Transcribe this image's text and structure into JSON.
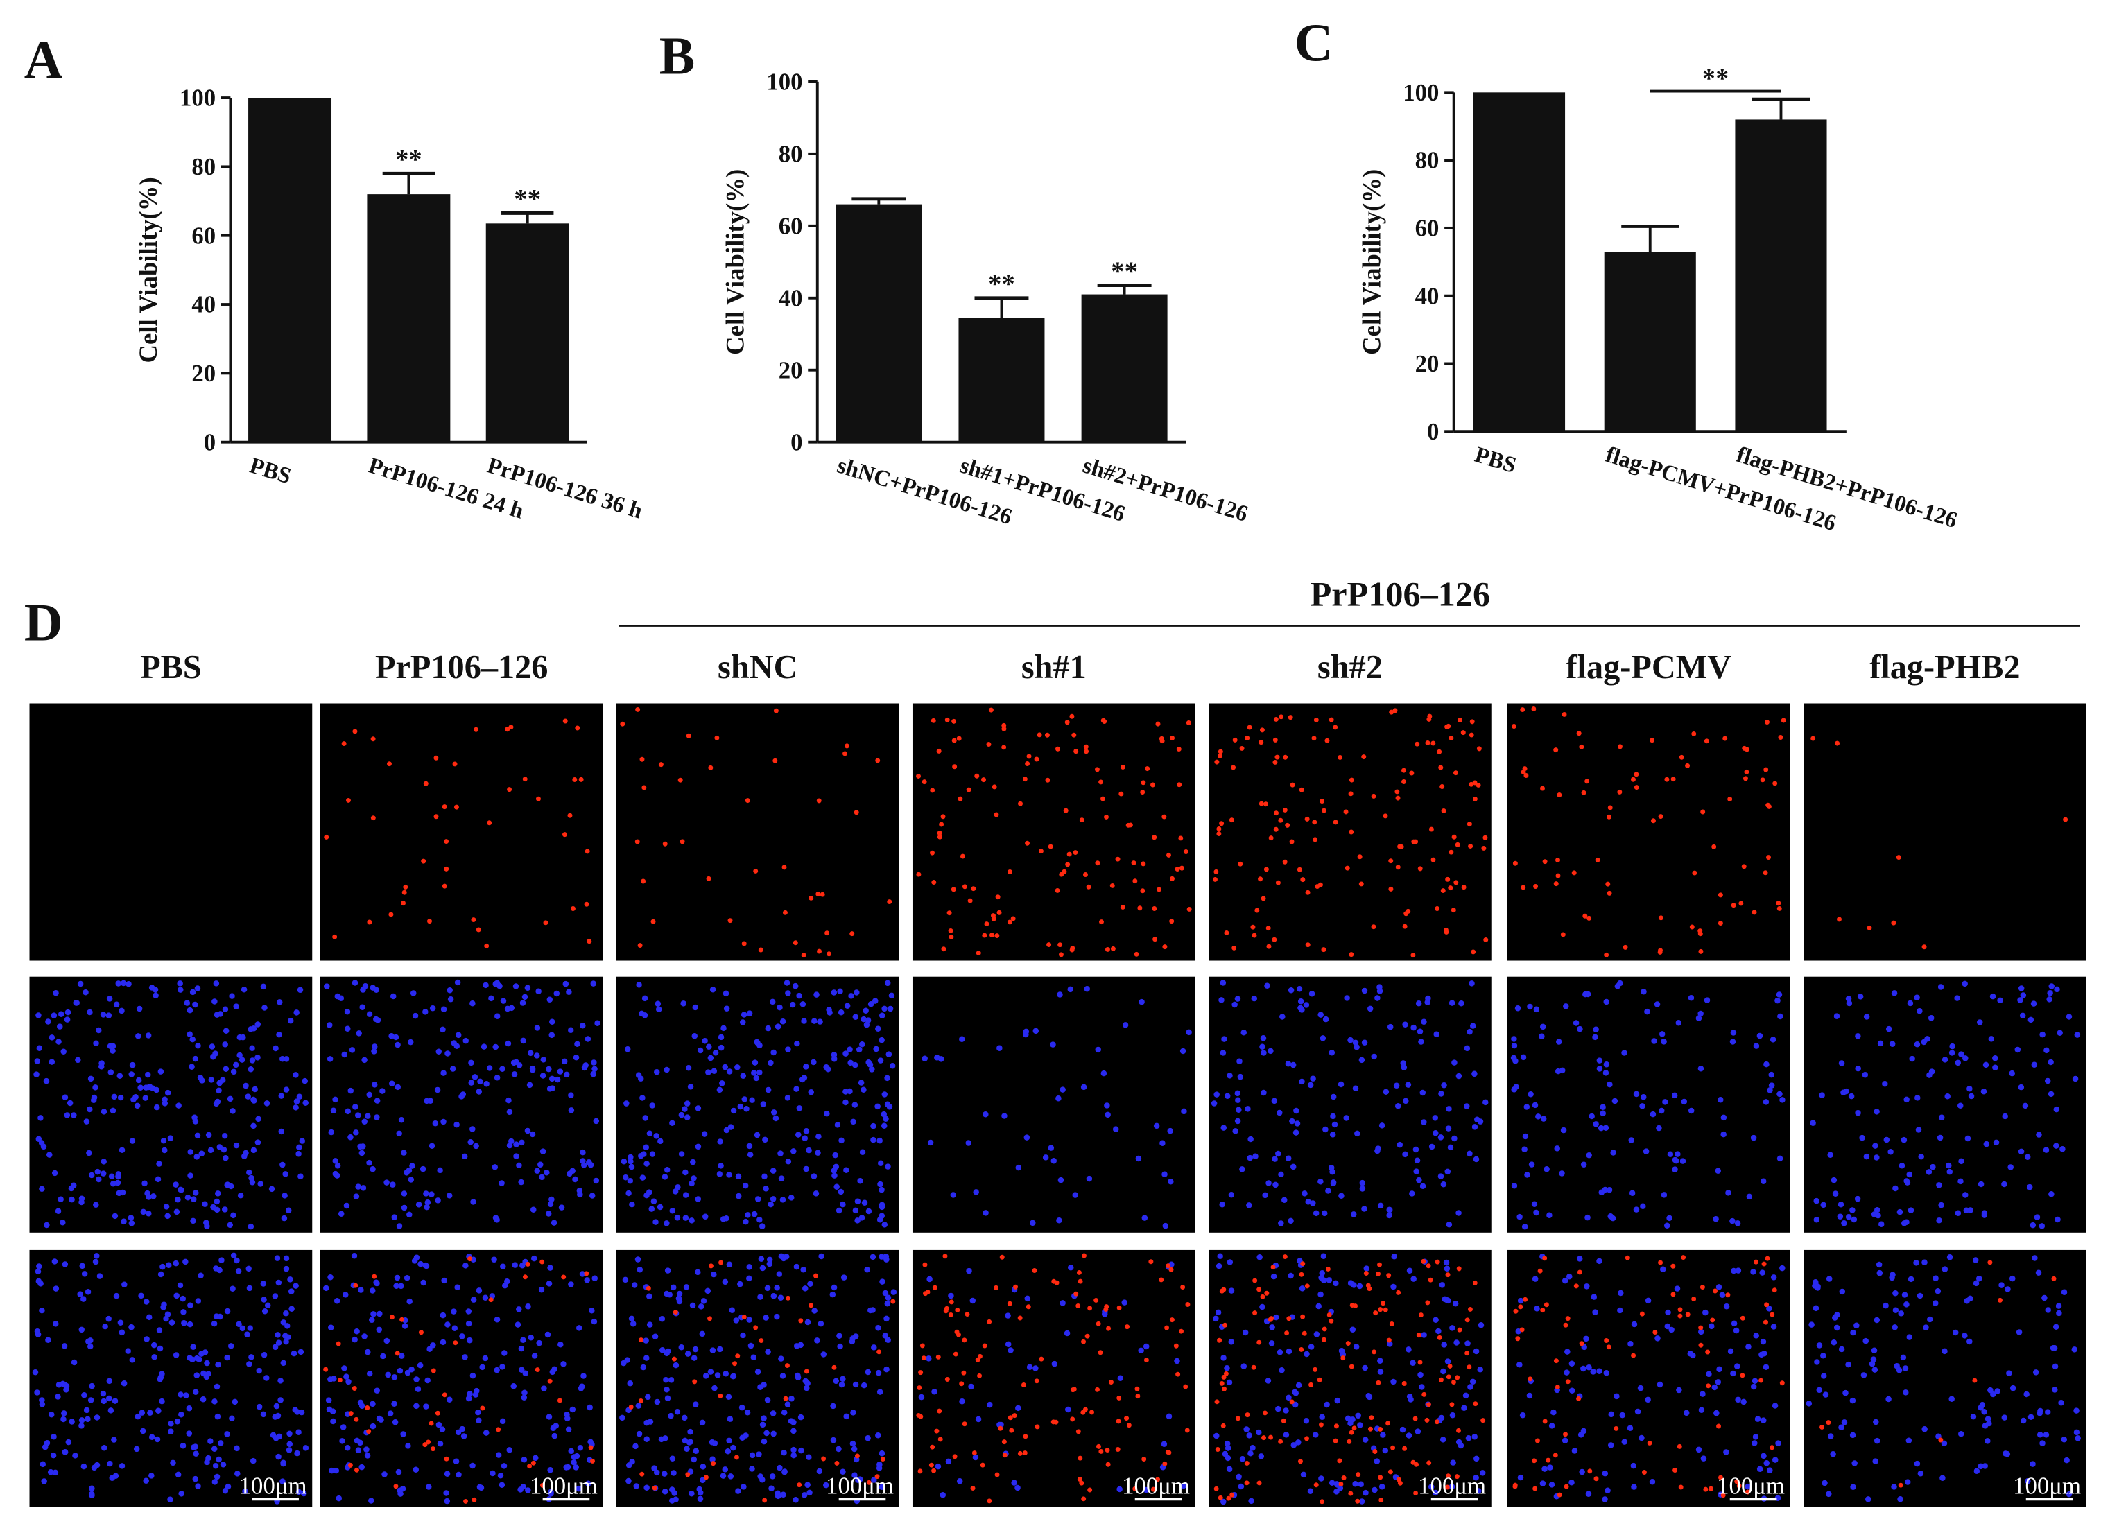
{
  "chart_data": [
    {
      "type": "bar",
      "panel_label": "A",
      "ylabel": "Cell Viability(%)",
      "categories": [
        "PBS",
        "PrP106-126 24 h",
        "PrP106-126 36 h"
      ],
      "values": [
        100,
        72,
        63.5
      ],
      "errors": [
        null,
        6,
        3
      ],
      "significance": [
        null,
        "**",
        "**"
      ],
      "color": "#111111",
      "ylim": [
        0,
        100
      ],
      "yticks": [
        0,
        20,
        40,
        60,
        80,
        100
      ]
    },
    {
      "type": "bar",
      "panel_label": "B",
      "ylabel": "Cell Viability(%)",
      "categories": [
        "shNC+PrP106-126",
        "sh#1+PrP106-126",
        "sh#2+PrP106-126"
      ],
      "values": [
        66,
        34.5,
        41
      ],
      "errors": [
        1.5,
        5.5,
        2.5
      ],
      "significance": [
        null,
        "**",
        "**"
      ],
      "color": "#111111",
      "ylim": [
        0,
        100
      ],
      "yticks": [
        0,
        20,
        40,
        60,
        80,
        100
      ]
    },
    {
      "type": "bar",
      "panel_label": "C",
      "ylabel": "Cell Viability(%)",
      "categories": [
        "PBS",
        "flag-PCMV+PrP106-126",
        "flag-PHB2+PrP106-126"
      ],
      "values": [
        100,
        53,
        92
      ],
      "errors": [
        null,
        7.5,
        6
      ],
      "comparison": {
        "text": "**",
        "between": [
          "flag-PCMV+PrP106-126",
          "flag-PHB2+PrP106-126"
        ]
      },
      "color": "#111111",
      "ylim": [
        0,
        100
      ],
      "yticks": [
        0,
        20,
        40,
        60,
        80,
        100
      ]
    }
  ],
  "panel_d": {
    "panel_label": "D",
    "group_label": "PrP106–126",
    "columns": [
      "PBS",
      "PrP106–126",
      "shNC",
      "sh#1",
      "sh#2",
      "flag-PCMV",
      "flag-PHB2"
    ],
    "scale_bar": "100μm"
  }
}
